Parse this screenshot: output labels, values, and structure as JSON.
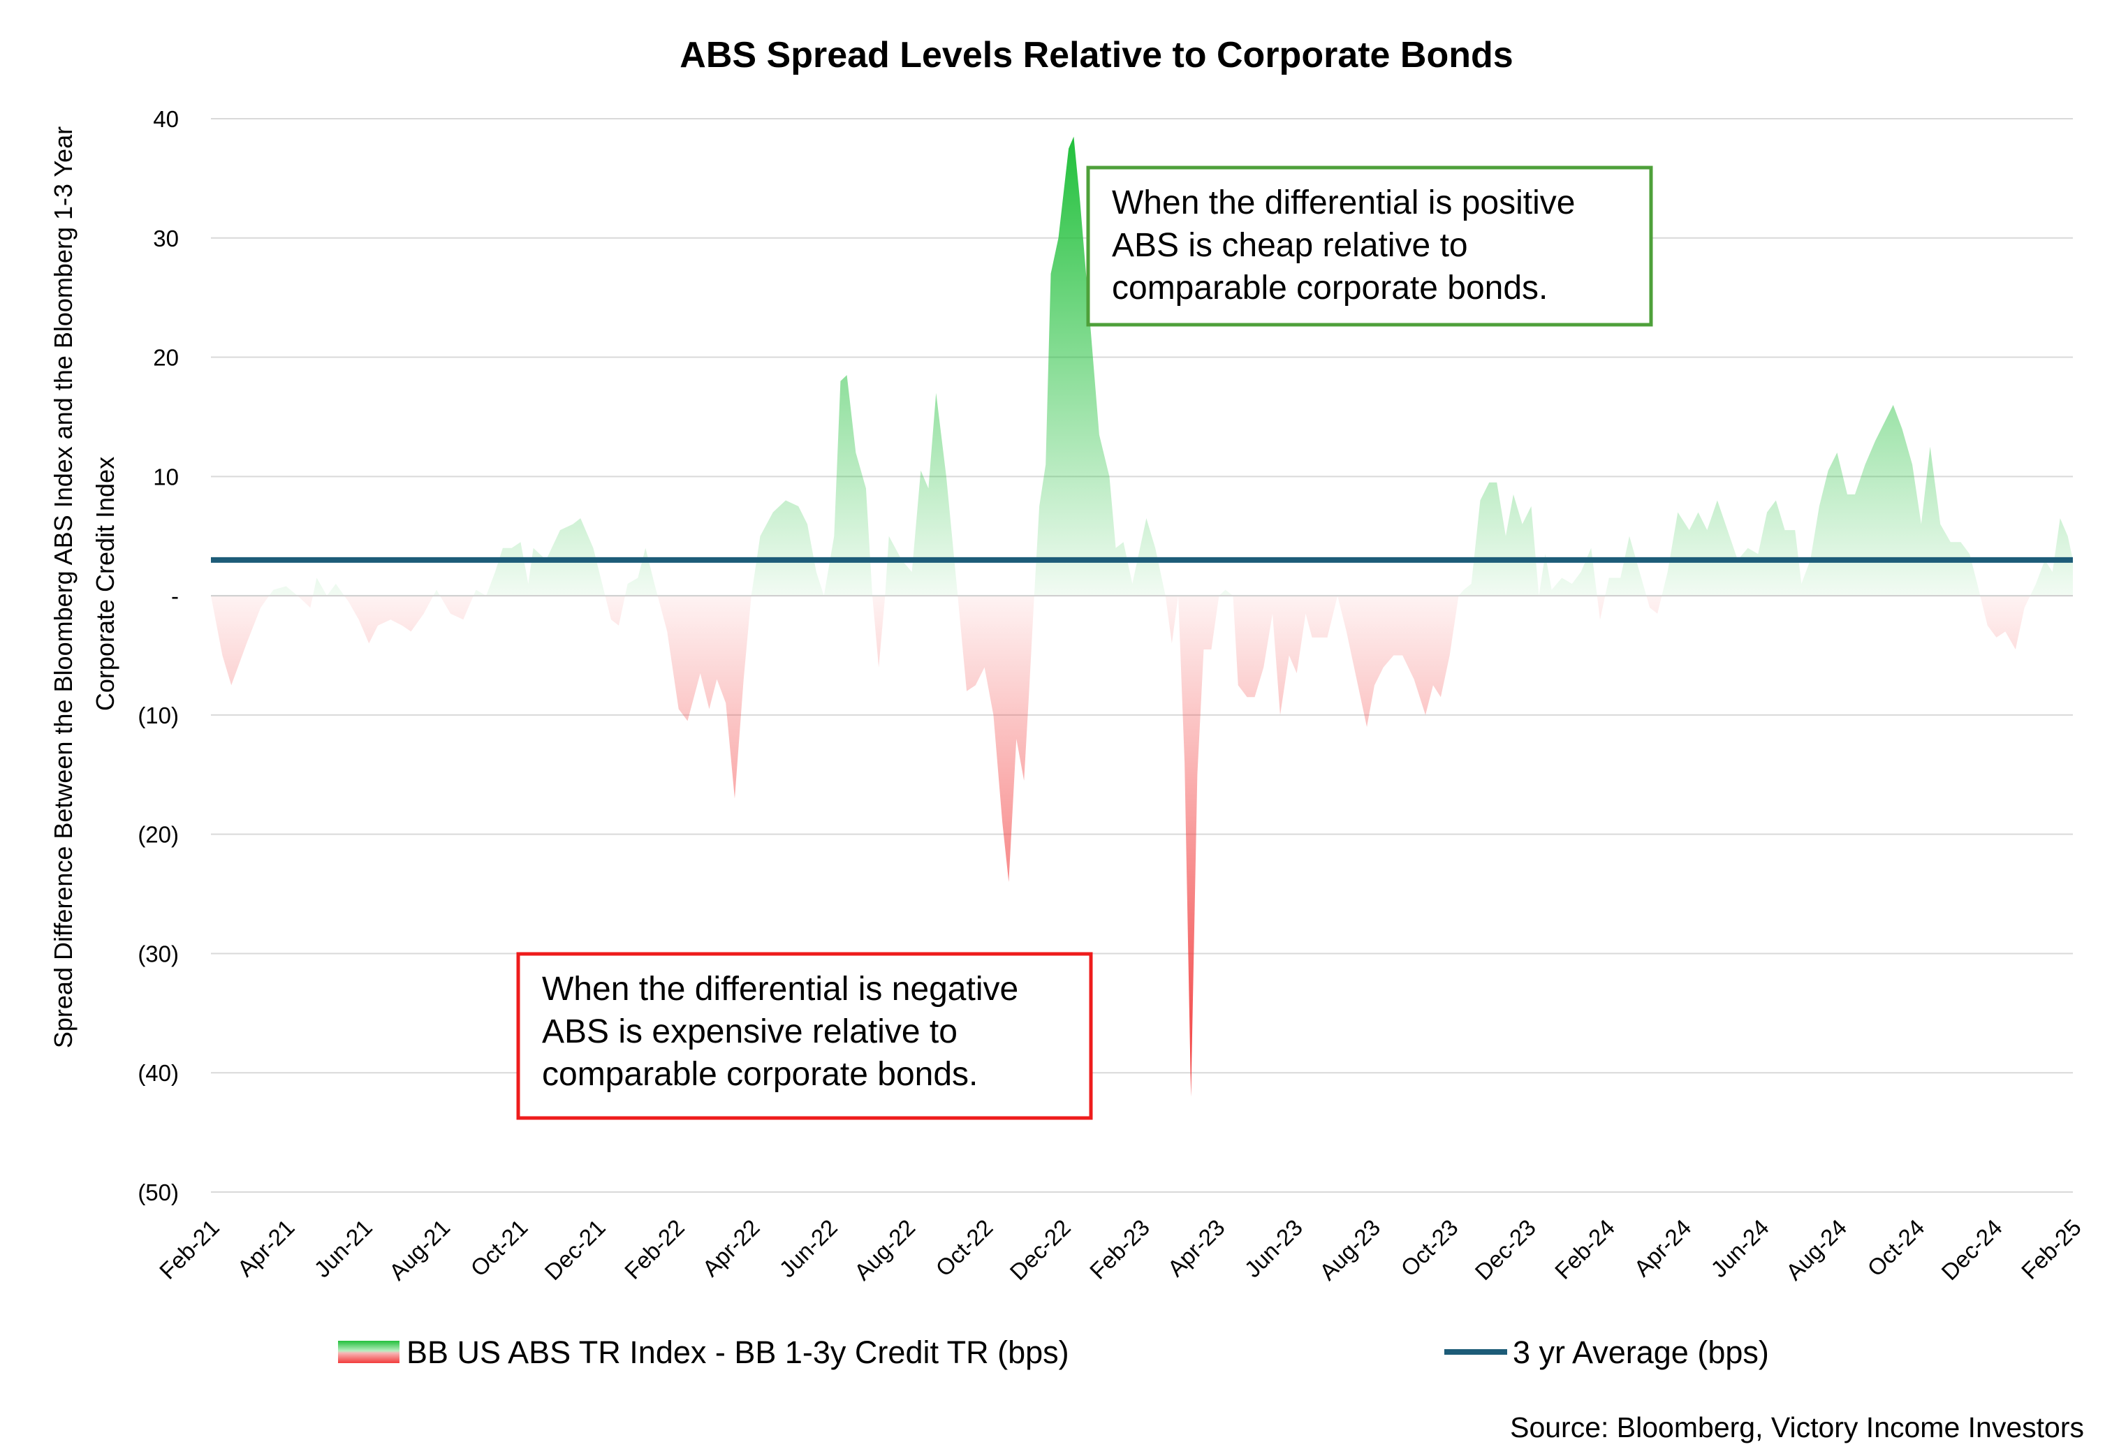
{
  "chart_data": {
    "type": "area",
    "title": "ABS Spread Levels Relative to Corporate Bonds",
    "ylabel_lines": [
      "Spread Difference Between the Bloomberg ABS Index and the Bloomberg 1-3 Year",
      "Corporate Credit Index"
    ],
    "xlabel": "",
    "ylim": [
      -50,
      40
    ],
    "y_ticks": [
      {
        "value": 40,
        "label": "40"
      },
      {
        "value": 30,
        "label": "30"
      },
      {
        "value": 20,
        "label": "20"
      },
      {
        "value": 10,
        "label": "10"
      },
      {
        "value": 0,
        "label": "-"
      },
      {
        "value": -10,
        "label": "(10)"
      },
      {
        "value": -20,
        "label": "(20)"
      },
      {
        "value": -30,
        "label": "(30)"
      },
      {
        "value": -40,
        "label": "(40)"
      },
      {
        "value": -50,
        "label": "(50)"
      }
    ],
    "x_range": [
      "2021-02-01",
      "2025-02-01"
    ],
    "x_ticks": [
      {
        "date": "2021-02-01",
        "label": "Feb-21"
      },
      {
        "date": "2021-04-01",
        "label": "Apr-21"
      },
      {
        "date": "2021-06-01",
        "label": "Jun-21"
      },
      {
        "date": "2021-08-01",
        "label": "Aug-21"
      },
      {
        "date": "2021-10-01",
        "label": "Oct-21"
      },
      {
        "date": "2021-12-01",
        "label": "Dec-21"
      },
      {
        "date": "2022-02-01",
        "label": "Feb-22"
      },
      {
        "date": "2022-04-01",
        "label": "Apr-22"
      },
      {
        "date": "2022-06-01",
        "label": "Jun-22"
      },
      {
        "date": "2022-08-01",
        "label": "Aug-22"
      },
      {
        "date": "2022-10-01",
        "label": "Oct-22"
      },
      {
        "date": "2022-12-01",
        "label": "Dec-22"
      },
      {
        "date": "2023-02-01",
        "label": "Feb-23"
      },
      {
        "date": "2023-04-01",
        "label": "Apr-23"
      },
      {
        "date": "2023-06-01",
        "label": "Jun-23"
      },
      {
        "date": "2023-08-01",
        "label": "Aug-23"
      },
      {
        "date": "2023-10-01",
        "label": "Oct-23"
      },
      {
        "date": "2023-12-01",
        "label": "Dec-23"
      },
      {
        "date": "2024-02-01",
        "label": "Feb-24"
      },
      {
        "date": "2024-04-01",
        "label": "Apr-24"
      },
      {
        "date": "2024-06-01",
        "label": "Jun-24"
      },
      {
        "date": "2024-08-01",
        "label": "Aug-24"
      },
      {
        "date": "2024-10-01",
        "label": "Oct-24"
      },
      {
        "date": "2024-12-01",
        "label": "Dec-24"
      },
      {
        "date": "2025-02-01",
        "label": "Feb-25"
      }
    ],
    "grid": true,
    "legend_position": "bottom",
    "series": [
      {
        "name": "BB US ABS TR Index - BB 1-3y Credit TR (bps)",
        "kind": "area",
        "positive_color": "#22c03c",
        "negative_color": "#f23b3b",
        "points": [
          [
            "2021-02-01",
            0
          ],
          [
            "2021-02-10",
            -5
          ],
          [
            "2021-02-17",
            -7.5
          ],
          [
            "2021-03-01",
            -4
          ],
          [
            "2021-03-12",
            -1
          ],
          [
            "2021-03-22",
            0.5
          ],
          [
            "2021-04-01",
            0.8
          ],
          [
            "2021-04-10",
            0
          ],
          [
            "2021-04-20",
            -1
          ],
          [
            "2021-04-25",
            1.5
          ],
          [
            "2021-05-03",
            0
          ],
          [
            "2021-05-10",
            1
          ],
          [
            "2021-05-20",
            -0.5
          ],
          [
            "2021-05-28",
            -2
          ],
          [
            "2021-06-05",
            -4
          ],
          [
            "2021-06-12",
            -2.5
          ],
          [
            "2021-06-22",
            -2
          ],
          [
            "2021-07-01",
            -2.5
          ],
          [
            "2021-07-08",
            -3
          ],
          [
            "2021-07-18",
            -1.5
          ],
          [
            "2021-07-28",
            0.5
          ],
          [
            "2021-08-08",
            -1.5
          ],
          [
            "2021-08-18",
            -2
          ],
          [
            "2021-08-28",
            0.5
          ],
          [
            "2021-09-05",
            0
          ],
          [
            "2021-09-12",
            2
          ],
          [
            "2021-09-18",
            4
          ],
          [
            "2021-09-25",
            4
          ],
          [
            "2021-10-02",
            4.5
          ],
          [
            "2021-10-08",
            1
          ],
          [
            "2021-10-12",
            4
          ],
          [
            "2021-10-22",
            3
          ],
          [
            "2021-11-02",
            5.5
          ],
          [
            "2021-11-12",
            6
          ],
          [
            "2021-11-18",
            6.5
          ],
          [
            "2021-11-28",
            4
          ],
          [
            "2021-12-05",
            1
          ],
          [
            "2021-12-12",
            -2
          ],
          [
            "2021-12-18",
            -2.5
          ],
          [
            "2021-12-25",
            1
          ],
          [
            "2022-01-02",
            1.5
          ],
          [
            "2022-01-08",
            4
          ],
          [
            "2022-01-15",
            1
          ],
          [
            "2022-01-25",
            -3
          ],
          [
            "2022-02-03",
            -9.5
          ],
          [
            "2022-02-10",
            -10.5
          ],
          [
            "2022-02-20",
            -6.5
          ],
          [
            "2022-02-27",
            -9.5
          ],
          [
            "2022-03-05",
            -7
          ],
          [
            "2022-03-12",
            -9
          ],
          [
            "2022-03-19",
            -17
          ],
          [
            "2022-03-26",
            -7
          ],
          [
            "2022-04-01",
            0
          ],
          [
            "2022-04-08",
            5
          ],
          [
            "2022-04-18",
            7
          ],
          [
            "2022-04-28",
            8
          ],
          [
            "2022-05-08",
            7.5
          ],
          [
            "2022-05-15",
            6
          ],
          [
            "2022-05-22",
            2
          ],
          [
            "2022-05-28",
            0
          ],
          [
            "2022-06-05",
            5
          ],
          [
            "2022-06-10",
            18
          ],
          [
            "2022-06-15",
            18.5
          ],
          [
            "2022-06-22",
            12
          ],
          [
            "2022-06-30",
            9
          ],
          [
            "2022-07-05",
            0
          ],
          [
            "2022-07-10",
            -6
          ],
          [
            "2022-07-15",
            0
          ],
          [
            "2022-07-18",
            5
          ],
          [
            "2022-07-28",
            3
          ],
          [
            "2022-08-05",
            2
          ],
          [
            "2022-08-12",
            10.5
          ],
          [
            "2022-08-18",
            9
          ],
          [
            "2022-08-24",
            17
          ],
          [
            "2022-09-01",
            10
          ],
          [
            "2022-09-10",
            0
          ],
          [
            "2022-09-17",
            -8
          ],
          [
            "2022-09-24",
            -7.5
          ],
          [
            "2022-10-01",
            -6
          ],
          [
            "2022-10-08",
            -10
          ],
          [
            "2022-10-15",
            -19
          ],
          [
            "2022-10-20",
            -24
          ],
          [
            "2022-10-26",
            -12
          ],
          [
            "2022-11-01",
            -15.5
          ],
          [
            "2022-11-05",
            -8
          ],
          [
            "2022-11-09",
            0
          ],
          [
            "2022-11-13",
            7.5
          ],
          [
            "2022-11-18",
            11
          ],
          [
            "2022-11-22",
            27
          ],
          [
            "2022-11-28",
            30
          ],
          [
            "2022-12-06",
            37.5
          ],
          [
            "2022-12-10",
            38.5
          ],
          [
            "2022-12-15",
            33
          ],
          [
            "2022-12-22",
            24
          ],
          [
            "2022-12-30",
            13.5
          ],
          [
            "2023-01-07",
            10
          ],
          [
            "2023-01-12",
            4
          ],
          [
            "2023-01-18",
            4.5
          ],
          [
            "2023-01-25",
            1
          ],
          [
            "2023-02-05",
            6.5
          ],
          [
            "2023-02-12",
            4
          ],
          [
            "2023-02-20",
            0
          ],
          [
            "2023-02-25",
            -4
          ],
          [
            "2023-03-02",
            0
          ],
          [
            "2023-03-07",
            -14
          ],
          [
            "2023-03-12",
            -42
          ],
          [
            "2023-03-17",
            -15
          ],
          [
            "2023-03-22",
            -4.5
          ],
          [
            "2023-03-28",
            -4.5
          ],
          [
            "2023-04-03",
            0
          ],
          [
            "2023-04-08",
            0.5
          ],
          [
            "2023-04-14",
            0
          ],
          [
            "2023-04-18",
            -7.5
          ],
          [
            "2023-04-25",
            -8.5
          ],
          [
            "2023-05-01",
            -8.5
          ],
          [
            "2023-05-08",
            -6
          ],
          [
            "2023-05-15",
            -1.5
          ],
          [
            "2023-05-21",
            -10
          ],
          [
            "2023-05-28",
            -5
          ],
          [
            "2023-06-03",
            -6.5
          ],
          [
            "2023-06-10",
            -1.5
          ],
          [
            "2023-06-15",
            -3.5
          ],
          [
            "2023-06-20",
            -3.5
          ],
          [
            "2023-06-27",
            -3.5
          ],
          [
            "2023-07-05",
            0
          ],
          [
            "2023-07-12",
            -3
          ],
          [
            "2023-07-22",
            -8
          ],
          [
            "2023-07-28",
            -11
          ],
          [
            "2023-08-03",
            -7.5
          ],
          [
            "2023-08-10",
            -6
          ],
          [
            "2023-08-18",
            -5
          ],
          [
            "2023-08-25",
            -5
          ],
          [
            "2023-09-03",
            -7
          ],
          [
            "2023-09-12",
            -10
          ],
          [
            "2023-09-18",
            -7.5
          ],
          [
            "2023-09-24",
            -8.5
          ],
          [
            "2023-10-01",
            -5
          ],
          [
            "2023-10-08",
            0
          ],
          [
            "2023-10-12",
            0.5
          ],
          [
            "2023-10-18",
            1
          ],
          [
            "2023-10-25",
            8
          ],
          [
            "2023-11-01",
            9.5
          ],
          [
            "2023-11-07",
            9.5
          ],
          [
            "2023-11-14",
            5
          ],
          [
            "2023-11-20",
            8.5
          ],
          [
            "2023-11-27",
            6
          ],
          [
            "2023-12-04",
            7.5
          ],
          [
            "2023-12-10",
            0
          ],
          [
            "2023-12-15",
            3.5
          ],
          [
            "2023-12-20",
            0.5
          ],
          [
            "2023-12-28",
            1.5
          ],
          [
            "2024-01-05",
            1
          ],
          [
            "2024-01-12",
            2
          ],
          [
            "2024-01-20",
            4
          ],
          [
            "2024-01-27",
            -2
          ],
          [
            "2024-02-03",
            1.5
          ],
          [
            "2024-02-12",
            1.5
          ],
          [
            "2024-02-19",
            5
          ],
          [
            "2024-02-27",
            2
          ],
          [
            "2024-03-06",
            -1
          ],
          [
            "2024-03-12",
            -1.5
          ],
          [
            "2024-03-20",
            2
          ],
          [
            "2024-03-28",
            7
          ],
          [
            "2024-04-06",
            5.5
          ],
          [
            "2024-04-13",
            7
          ],
          [
            "2024-04-20",
            5.5
          ],
          [
            "2024-04-28",
            8
          ],
          [
            "2024-05-06",
            5.5
          ],
          [
            "2024-05-14",
            3
          ],
          [
            "2024-05-22",
            4
          ],
          [
            "2024-05-30",
            3.5
          ],
          [
            "2024-06-06",
            7
          ],
          [
            "2024-06-13",
            8
          ],
          [
            "2024-06-20",
            5.5
          ],
          [
            "2024-06-28",
            5.5
          ],
          [
            "2024-07-03",
            1
          ],
          [
            "2024-07-10",
            3
          ],
          [
            "2024-07-17",
            7.5
          ],
          [
            "2024-07-24",
            10.5
          ],
          [
            "2024-07-31",
            12
          ],
          [
            "2024-08-08",
            8.5
          ],
          [
            "2024-08-14",
            8.5
          ],
          [
            "2024-08-22",
            11
          ],
          [
            "2024-08-30",
            13
          ],
          [
            "2024-09-06",
            14.5
          ],
          [
            "2024-09-13",
            16
          ],
          [
            "2024-09-20",
            14
          ],
          [
            "2024-09-28",
            11
          ],
          [
            "2024-10-05",
            6
          ],
          [
            "2024-10-12",
            12.5
          ],
          [
            "2024-10-20",
            6
          ],
          [
            "2024-10-28",
            4.5
          ],
          [
            "2024-11-05",
            4.5
          ],
          [
            "2024-11-12",
            3.5
          ],
          [
            "2024-11-18",
            1
          ],
          [
            "2024-11-26",
            -2.5
          ],
          [
            "2024-12-03",
            -3.5
          ],
          [
            "2024-12-10",
            -3
          ],
          [
            "2024-12-18",
            -4.5
          ],
          [
            "2024-12-25",
            -1
          ],
          [
            "2025-01-03",
            1
          ],
          [
            "2025-01-10",
            3
          ],
          [
            "2025-01-16",
            2
          ],
          [
            "2025-01-22",
            6.5
          ],
          [
            "2025-01-28",
            5
          ],
          [
            "2025-02-01",
            3
          ]
        ]
      },
      {
        "name": "3 yr Average (bps)",
        "kind": "line",
        "color": "#1d5c78",
        "value": 3
      }
    ],
    "annotations": [
      {
        "id": "positive",
        "border_color": "#4ea03a",
        "lines": [
          "When the differential is positive",
          "ABS is cheap relative to",
          "comparable corporate bonds."
        ]
      },
      {
        "id": "negative",
        "border_color": "#ee1c1c",
        "lines": [
          "When the differential is negative",
          "ABS is expensive relative to",
          "comparable corporate bonds."
        ]
      }
    ],
    "source": "Source: Bloomberg, Victory Income Investors"
  }
}
